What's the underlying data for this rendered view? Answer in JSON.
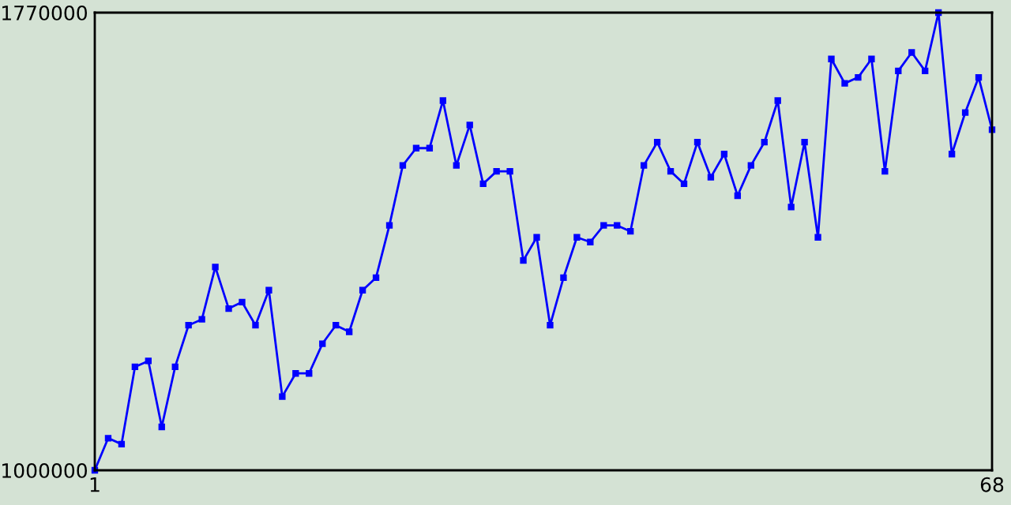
{
  "chart_data": {
    "type": "line",
    "x": [
      1,
      2,
      3,
      4,
      5,
      6,
      7,
      8,
      9,
      10,
      11,
      12,
      13,
      14,
      15,
      16,
      17,
      18,
      19,
      20,
      21,
      22,
      23,
      24,
      25,
      26,
      27,
      28,
      29,
      30,
      31,
      32,
      33,
      34,
      35,
      36,
      37,
      38,
      39,
      40,
      41,
      42,
      43,
      44,
      45,
      46,
      47,
      48,
      49,
      50,
      51,
      52,
      53,
      54,
      55,
      56,
      57,
      58,
      59,
      60,
      61,
      62,
      63,
      64,
      65,
      66,
      67,
      68
    ],
    "series": [
      {
        "color": "#0000ff",
        "values": [
          1000000,
          1054000,
          1044000,
          1174000,
          1184000,
          1073000,
          1174000,
          1244000,
          1254000,
          1342000,
          1272000,
          1283000,
          1244000,
          1303000,
          1124000,
          1163000,
          1163000,
          1213000,
          1244000,
          1233000,
          1303000,
          1324000,
          1412000,
          1513000,
          1542000,
          1542000,
          1622000,
          1513000,
          1581000,
          1482000,
          1503000,
          1503000,
          1353000,
          1392000,
          1244000,
          1324000,
          1392000,
          1384000,
          1412000,
          1412000,
          1402000,
          1513000,
          1552000,
          1503000,
          1482000,
          1552000,
          1493000,
          1532000,
          1462000,
          1513000,
          1552000,
          1622000,
          1443000,
          1552000,
          1392000,
          1692000,
          1651000,
          1661000,
          1692000,
          1503000,
          1672000,
          1703000,
          1672000,
          1770000,
          1532000,
          1602000,
          1661000,
          1573000
        ]
      }
    ],
    "xlim": [
      1,
      68
    ],
    "xticks": [
      1,
      68
    ],
    "ylim": [
      1000000,
      1770000
    ],
    "yticks": [
      1000000,
      1770000
    ],
    "legend": false,
    "marker": "square",
    "line_style": "solid"
  }
}
